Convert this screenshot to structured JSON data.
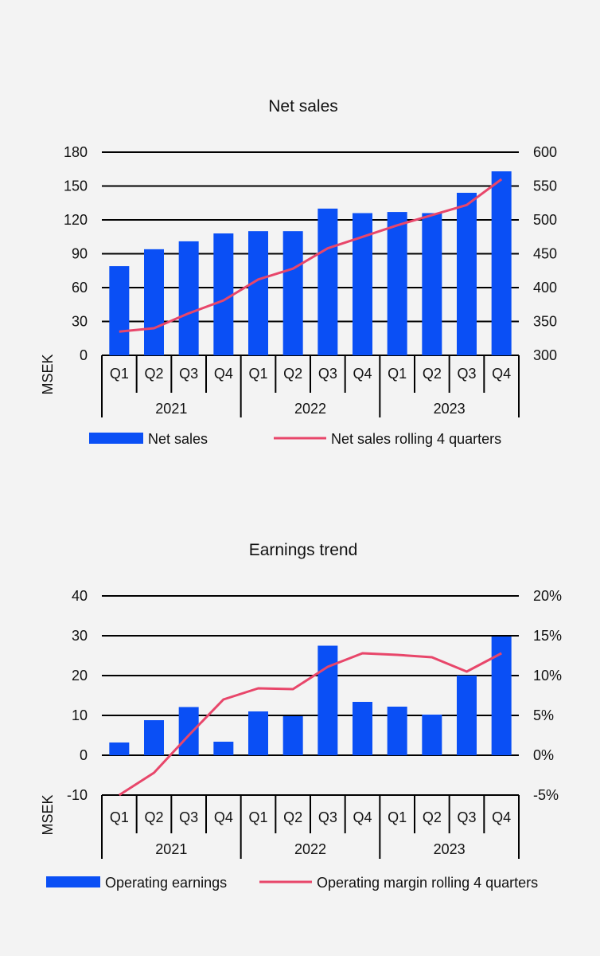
{
  "colors": {
    "bar": "#0a4ff5",
    "line": "#e8466a",
    "axis": "#000000",
    "background": "#f3f3f3"
  },
  "chart_data": [
    {
      "type": "bar",
      "title": "Net sales",
      "ylabel": "MSEK",
      "categories": [
        "Q1",
        "Q2",
        "Q3",
        "Q4",
        "Q1",
        "Q2",
        "Q3",
        "Q4",
        "Q1",
        "Q2",
        "Q3",
        "Q4"
      ],
      "years": [
        "2021",
        "2022",
        "2023"
      ],
      "ylim": [
        0,
        180
      ],
      "yticks": [
        "180",
        "150",
        "120",
        "90",
        "60",
        "30",
        "0"
      ],
      "y2lim": [
        300,
        600
      ],
      "y2ticks": [
        "600",
        "550",
        "500",
        "450",
        "400",
        "350",
        "300"
      ],
      "series": [
        {
          "name": "Net sales",
          "kind": "bar",
          "axis": "left",
          "values": [
            79,
            94,
            101,
            108,
            110,
            110,
            130,
            126,
            127,
            126,
            144,
            163
          ]
        },
        {
          "name": "Net sales rolling 4 quarters",
          "kind": "line",
          "axis": "right",
          "values": [
            335,
            340,
            362,
            381,
            412,
            428,
            458,
            475,
            492,
            507,
            522,
            560
          ]
        }
      ]
    },
    {
      "type": "bar",
      "title": "Earnings trend",
      "ylabel": "MSEK",
      "categories": [
        "Q1",
        "Q2",
        "Q3",
        "Q4",
        "Q1",
        "Q2",
        "Q3",
        "Q4",
        "Q1",
        "Q2",
        "Q3",
        "Q4"
      ],
      "years": [
        "2021",
        "2022",
        "2023"
      ],
      "ylim": [
        -10,
        40
      ],
      "yticks": [
        "40",
        "30",
        "20",
        "10",
        "0",
        "-10"
      ],
      "y2lim": [
        -5,
        20
      ],
      "y2ticks": [
        "20%",
        "15%",
        "10%",
        "5%",
        "0%",
        "-5%"
      ],
      "series": [
        {
          "name": "Operating earnings",
          "kind": "bar",
          "axis": "left",
          "values": [
            3.2,
            8.8,
            12.1,
            3.4,
            11.0,
            9.8,
            27.5,
            13.4,
            12.2,
            10.2,
            20.0,
            29.8
          ]
        },
        {
          "name": "Operating margin rolling 4 quarters",
          "kind": "line",
          "axis": "right",
          "values": [
            -5.0,
            -2.2,
            2.5,
            7.0,
            8.4,
            8.3,
            11.1,
            12.8,
            12.6,
            12.3,
            10.5,
            12.8
          ]
        }
      ]
    }
  ]
}
